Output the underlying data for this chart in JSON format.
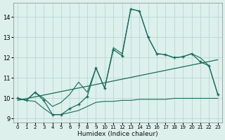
{
  "xlabel": "Humidex (Indice chaleur)",
  "x_values": [
    0,
    1,
    2,
    3,
    4,
    5,
    6,
    7,
    8,
    9,
    10,
    11,
    12,
    13,
    14,
    15,
    16,
    17,
    18,
    19,
    20,
    21,
    22,
    23
  ],
  "main_line": [
    10.0,
    9.9,
    10.3,
    9.9,
    9.2,
    9.2,
    9.5,
    9.7,
    10.1,
    11.5,
    10.5,
    12.4,
    12.1,
    14.4,
    14.3,
    13.0,
    12.2,
    12.15,
    12.0,
    12.05,
    12.2,
    11.8,
    11.6,
    10.2
  ],
  "envelope_upper": [
    10.0,
    9.9,
    10.3,
    10.0,
    9.6,
    9.8,
    10.2,
    10.8,
    10.3,
    11.5,
    10.5,
    12.5,
    12.2,
    14.4,
    14.3,
    13.0,
    12.2,
    12.15,
    12.0,
    12.05,
    12.2,
    12.0,
    11.6,
    10.2
  ],
  "envelope_lower": [
    10.0,
    9.9,
    9.85,
    9.5,
    9.2,
    9.2,
    9.3,
    9.4,
    9.6,
    9.8,
    9.85,
    9.85,
    9.9,
    9.9,
    9.95,
    9.95,
    9.95,
    9.95,
    10.0,
    10.0,
    10.0,
    10.0,
    10.0,
    10.0
  ],
  "trend_line_x": [
    0,
    23
  ],
  "trend_line_y": [
    9.9,
    11.9
  ],
  "ylim": [
    8.8,
    14.7
  ],
  "xlim": [
    -0.5,
    23.5
  ],
  "yticks": [
    9,
    10,
    11,
    12,
    13,
    14
  ],
  "xticks": [
    0,
    1,
    2,
    3,
    4,
    5,
    6,
    7,
    8,
    9,
    10,
    11,
    12,
    13,
    14,
    15,
    16,
    17,
    18,
    19,
    20,
    21,
    22,
    23
  ],
  "bg_color": "#ddf0eb",
  "grid_color": "#b8d8d2",
  "line_color": "#1a6b5e"
}
